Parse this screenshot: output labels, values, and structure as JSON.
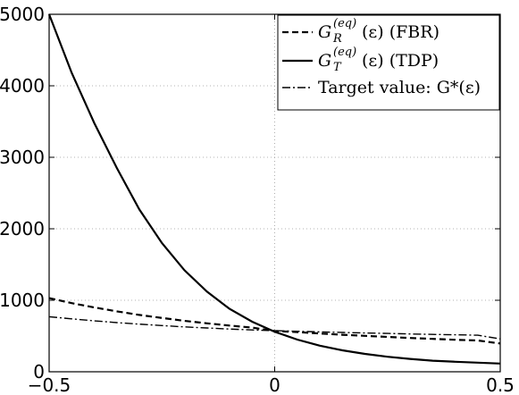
{
  "chart_data": {
    "type": "line",
    "xlim": [
      -0.5,
      0.5
    ],
    "ylim": [
      0,
      5000
    ],
    "grid": true,
    "legend_position": "top-right",
    "x_ticks": [
      "−0.5",
      "0",
      "0.5"
    ],
    "y_ticks": [
      "0",
      "1000",
      "2000",
      "3000",
      "4000",
      "5000"
    ],
    "x": [
      -0.5,
      -0.45,
      -0.4,
      -0.35,
      -0.3,
      -0.25,
      -0.2,
      -0.15,
      -0.1,
      -0.05,
      0,
      0.05,
      0.1,
      0.15,
      0.2,
      0.25,
      0.3,
      0.35,
      0.4,
      0.45,
      0.5
    ],
    "series": [
      {
        "name": "G_R^(eq)(ε) (FBR)",
        "legend_main": "G",
        "legend_sub": "R",
        "legend_sup": "(eq)",
        "legend_rest": "(ε) (FBR)",
        "style": "dashed",
        "values": [
          1030,
          960,
          900,
          845,
          795,
          752,
          712,
          677,
          646,
          617,
          570,
          555,
          535,
          518,
          502,
          487,
          473,
          460,
          448,
          437,
          395
        ]
      },
      {
        "name": "G_T^(eq)(ε) (TDP)",
        "legend_main": "G",
        "legend_sub": "T",
        "legend_sup": "(eq)",
        "legend_rest": "(ε) (TDP)",
        "style": "solid",
        "values": [
          5000,
          4180,
          3480,
          2850,
          2270,
          1800,
          1420,
          1120,
          880,
          700,
          560,
          450,
          365,
          300,
          250,
          210,
          180,
          155,
          140,
          128,
          115
        ]
      },
      {
        "name": "Target value: G*(ε)",
        "legend_label": "Target value: G*(ε)",
        "style": "dashdot",
        "values": [
          770,
          740,
          712,
          688,
          666,
          646,
          628,
          612,
          598,
          585,
          575,
          566,
          558,
          550,
          543,
          536,
          529,
          523,
          517,
          511,
          460
        ]
      }
    ]
  }
}
